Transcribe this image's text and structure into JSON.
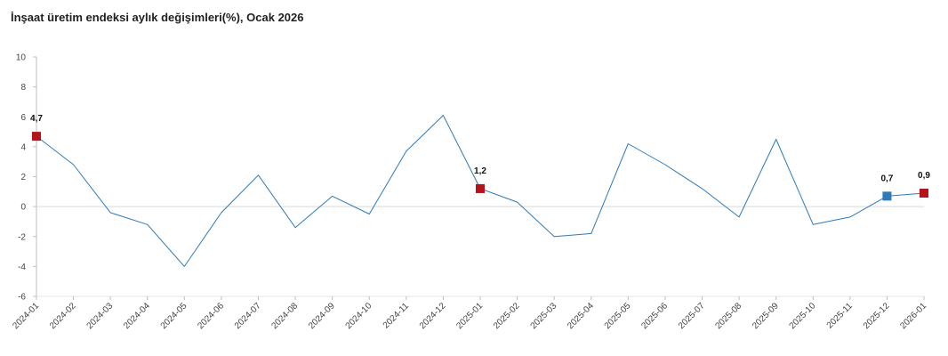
{
  "title": "İnşaat üretim endeksi aylık değişimleri(%), Ocak 2026",
  "chart_data": {
    "type": "line",
    "title": "İnşaat üretim endeksi aylık değişimleri(%), Ocak 2026",
    "xlabel": "",
    "ylabel": "",
    "ylim": [
      -6,
      10
    ],
    "yticks": [
      -6,
      -4,
      -2,
      0,
      2,
      4,
      6,
      8,
      10
    ],
    "ytick_labels": [
      "-6",
      "-4",
      "-2",
      "0",
      "2",
      "4",
      "6",
      "8",
      "10"
    ],
    "grid": "zero-line only",
    "categories": [
      "2024-01",
      "2024-02",
      "2024-03",
      "2024-04",
      "2024-05",
      "2024-06",
      "2024-07",
      "2024-08",
      "2024-09",
      "2024-10",
      "2024-11",
      "2024-12",
      "2025-01",
      "2025-02",
      "2025-03",
      "2025-04",
      "2025-05",
      "2025-06",
      "2025-07",
      "2025-08",
      "2025-09",
      "2025-10",
      "2025-11",
      "2025-12",
      "2026-01"
    ],
    "series": [
      {
        "color": "#2e7ab8",
        "values": [
          4.7,
          2.8,
          -0.4,
          -1.2,
          -4.0,
          -0.4,
          2.1,
          -1.4,
          0.7,
          -0.5,
          3.7,
          6.1,
          1.2,
          0.3,
          -2.0,
          -1.8,
          4.2,
          2.8,
          1.2,
          -0.7,
          4.5,
          -1.2,
          -0.7,
          0.7,
          0.9
        ]
      }
    ],
    "highlighted_points": [
      {
        "category": "2024-01",
        "value": 4.7,
        "label": "4,7",
        "color": "#b5121b"
      },
      {
        "category": "2025-01",
        "value": 1.2,
        "label": "1,2",
        "color": "#b5121b"
      },
      {
        "category": "2025-12",
        "value": 0.7,
        "label": "0,7",
        "color": "#2e7ab8"
      },
      {
        "category": "2026-01",
        "value": 0.9,
        "label": "0,9",
        "color": "#b5121b"
      }
    ],
    "colors": {
      "line": "#2e7ab8",
      "zero_line": "#d9d9d9",
      "axis": "#bfbfbf",
      "highlight": "#b5121b",
      "highlight_alt": "#2e7ab8"
    }
  }
}
